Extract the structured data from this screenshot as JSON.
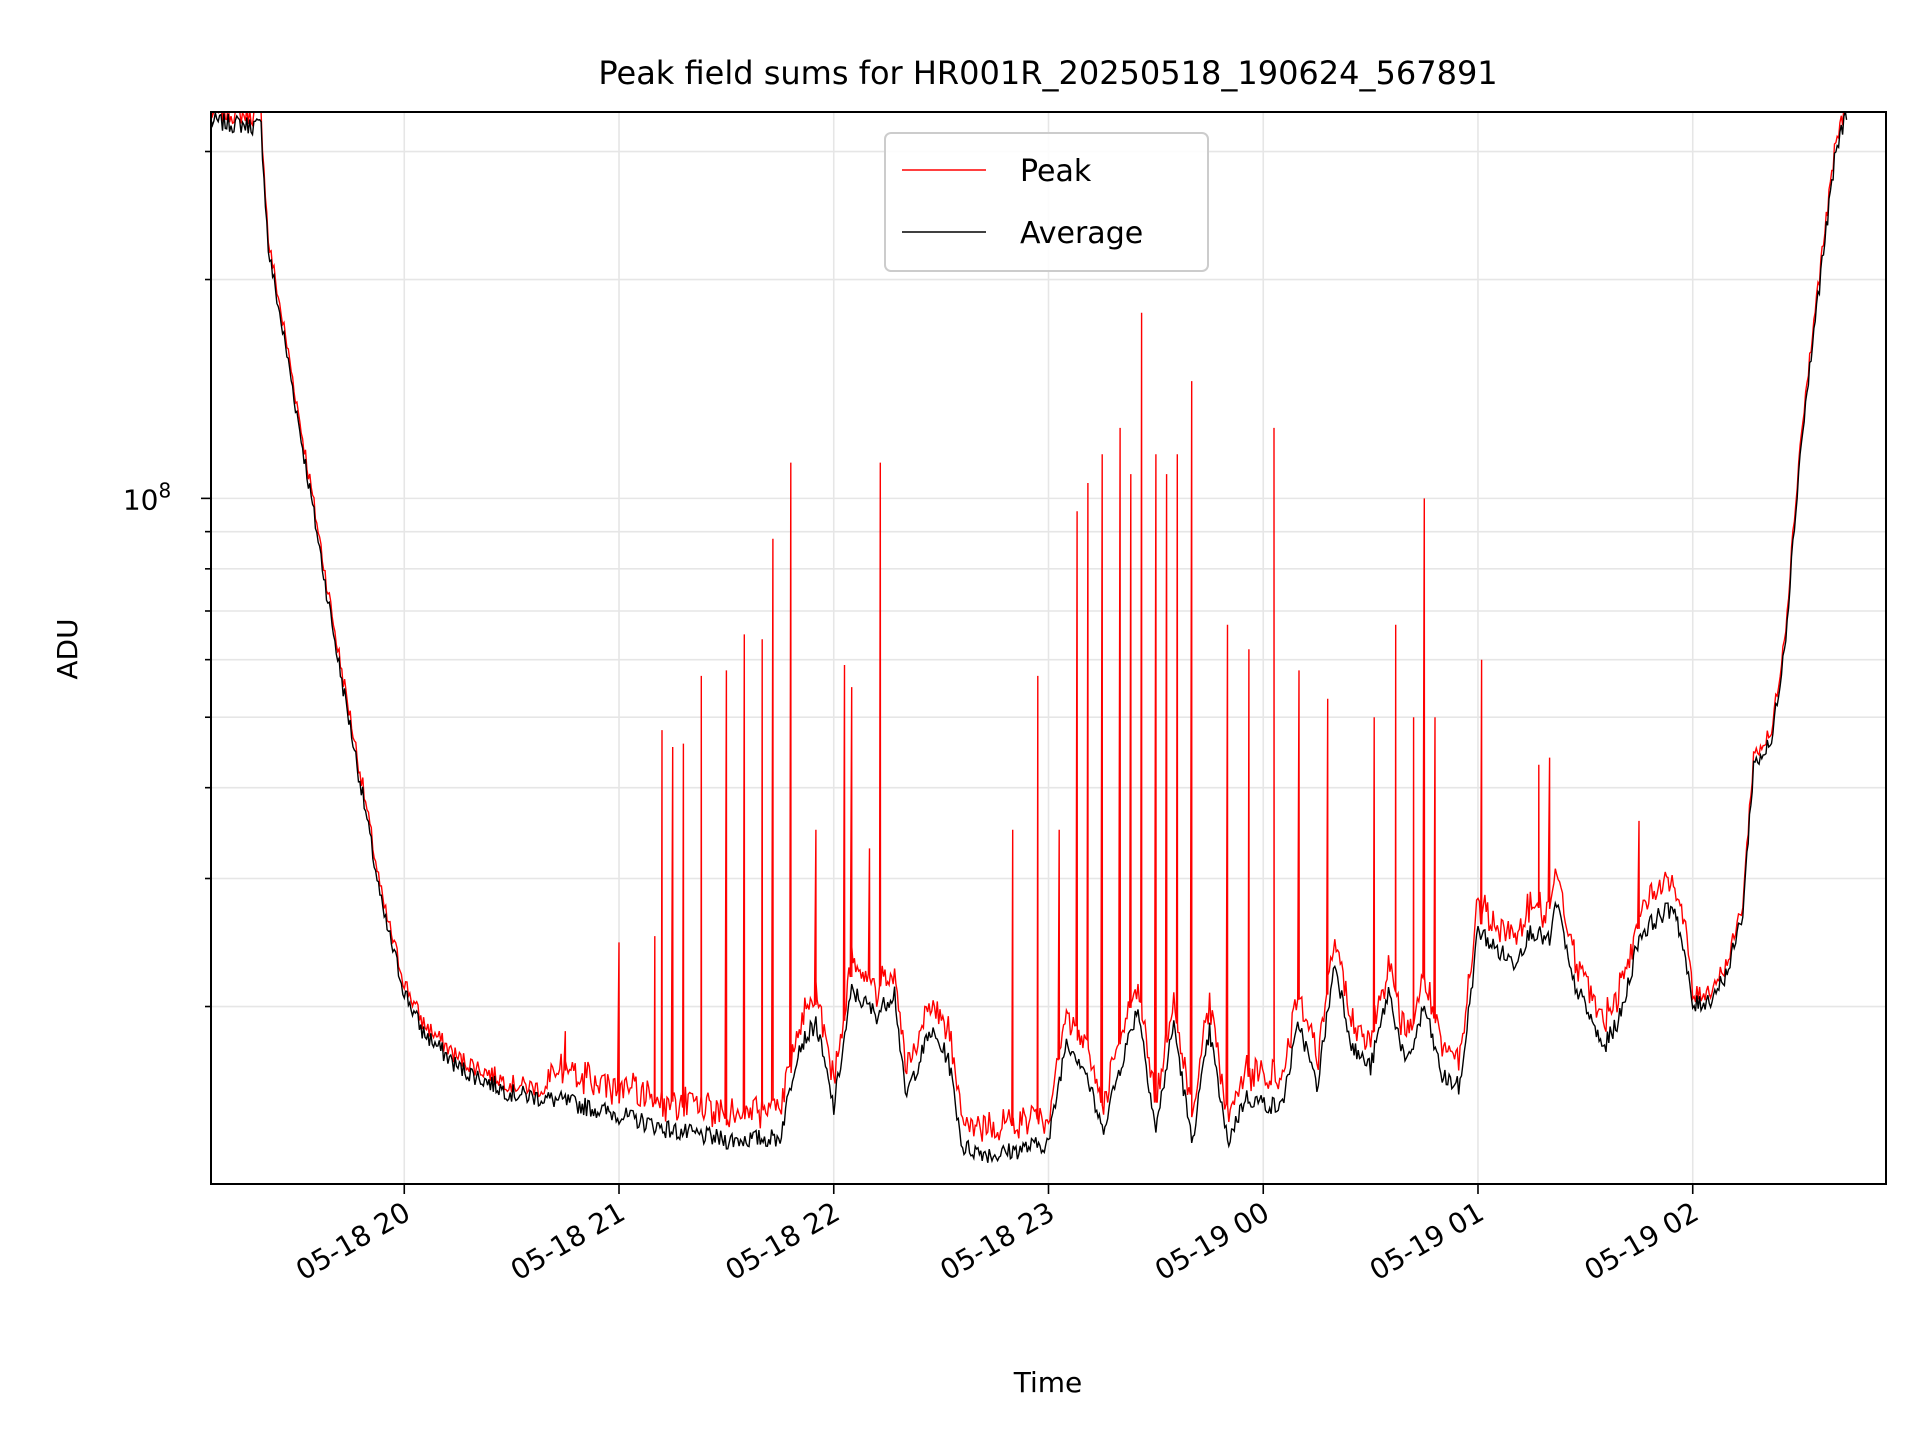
{
  "chart_data": {
    "type": "line",
    "title": "Peak field sums for HR001R_20250518_190624_567891",
    "xlabel": "Time",
    "ylabel": "ADU",
    "x_tick_labels": [
      "05-18 20",
      "05-18 21",
      "05-18 22",
      "05-18 23",
      "05-19 00",
      "05-19 01",
      "05-19 02"
    ],
    "y_tick_labels": [
      {
        "base": "10",
        "exp": "8"
      }
    ],
    "y_scale": "log",
    "ylim": [
      11400000.0,
      340000000.0
    ],
    "grid": true,
    "legend_position": "top-center",
    "legend": [
      {
        "name": "Peak",
        "color": "#ff0000"
      },
      {
        "name": "Average",
        "color": "#000000"
      }
    ],
    "x_start_label": "2025-05-18 19:06",
    "x_end_label": "2025-05-19 02:54",
    "series": [
      {
        "name": "Average",
        "color": "#000000",
        "points": [
          [
            "2025-05-18 19:06",
            330000000.0
          ],
          [
            "2025-05-18 19:20",
            325000000.0
          ],
          [
            "2025-05-18 19:22",
            220000000.0
          ],
          [
            "2025-05-18 19:28",
            150000000.0
          ],
          [
            "2025-05-18 19:34",
            100000000.0
          ],
          [
            "2025-05-18 19:41",
            62000000.0
          ],
          [
            "2025-05-18 19:48",
            40000000.0
          ],
          [
            "2025-05-18 19:54",
            27000000.0
          ],
          [
            "2025-05-18 20:00",
            21000000.0
          ],
          [
            "2025-05-18 20:05",
            18500000.0
          ],
          [
            "2025-05-18 20:15",
            16500000.0
          ],
          [
            "2025-05-18 20:30",
            15200000.0
          ],
          [
            "2025-05-18 20:45",
            14800000.0
          ],
          [
            "2025-05-18 21:00",
            14200000.0
          ],
          [
            "2025-05-18 21:15",
            13500000.0
          ],
          [
            "2025-05-18 21:30",
            13100000.0
          ],
          [
            "2025-05-18 21:45",
            13200000.0
          ],
          [
            "2025-05-18 21:50",
            17500000.0
          ],
          [
            "2025-05-18 21:55",
            19000000.0
          ],
          [
            "2025-05-18 22:00",
            14500000.0
          ],
          [
            "2025-05-18 22:05",
            21000000.0
          ],
          [
            "2025-05-18 22:12",
            19500000.0
          ],
          [
            "2025-05-18 22:17",
            21000000.0
          ],
          [
            "2025-05-18 22:20",
            15000000.0
          ],
          [
            "2025-05-18 22:27",
            18500000.0
          ],
          [
            "2025-05-18 22:32",
            17000000.0
          ],
          [
            "2025-05-18 22:36",
            12800000.0
          ],
          [
            "2025-05-18 22:45",
            12500000.0
          ],
          [
            "2025-05-18 23:00",
            13000000.0
          ],
          [
            "2025-05-18 23:05",
            18000000.0
          ],
          [
            "2025-05-18 23:10",
            16500000.0
          ],
          [
            "2025-05-18 23:15",
            13500000.0
          ],
          [
            "2025-05-18 23:20",
            16500000.0
          ],
          [
            "2025-05-18 23:25",
            20000000.0
          ],
          [
            "2025-05-18 23:30",
            13500000.0
          ],
          [
            "2025-05-18 23:35",
            19000000.0
          ],
          [
            "2025-05-18 23:40",
            13000000.0
          ],
          [
            "2025-05-18 23:45",
            18500000.0
          ],
          [
            "2025-05-18 23:50",
            13000000.0
          ],
          [
            "2025-05-18 23:55",
            15000000.0
          ],
          [
            "2025-05-19 00:05",
            14500000.0
          ],
          [
            "2025-05-19 00:10",
            19000000.0
          ],
          [
            "2025-05-19 00:15",
            15500000.0
          ],
          [
            "2025-05-19 00:20",
            23000000.0
          ],
          [
            "2025-05-19 00:25",
            17500000.0
          ],
          [
            "2025-05-19 00:30",
            16500000.0
          ],
          [
            "2025-05-19 00:35",
            21000000.0
          ],
          [
            "2025-05-19 00:40",
            16500000.0
          ],
          [
            "2025-05-19 00:45",
            20000000.0
          ],
          [
            "2025-05-19 00:50",
            16000000.0
          ],
          [
            "2025-05-19 00:55",
            15500000.0
          ],
          [
            "2025-05-19 01:00",
            25500000.0
          ],
          [
            "2025-05-19 01:05",
            24000000.0
          ],
          [
            "2025-05-19 01:10",
            23000000.0
          ],
          [
            "2025-05-19 01:15",
            25500000.0
          ],
          [
            "2025-05-19 01:20",
            24500000.0
          ],
          [
            "2025-05-19 01:22",
            28000000.0
          ],
          [
            "2025-05-19 01:26",
            22000000.0
          ],
          [
            "2025-05-19 01:30",
            20000000.0
          ],
          [
            "2025-05-19 01:35",
            17500000.0
          ],
          [
            "2025-05-19 01:40",
            19500000.0
          ],
          [
            "2025-05-19 01:45",
            25000000.0
          ],
          [
            "2025-05-19 01:50",
            26500000.0
          ],
          [
            "2025-05-19 01:55",
            27500000.0
          ],
          [
            "2025-05-19 01:58",
            23000000.0
          ],
          [
            "2025-05-19 02:00",
            20000000.0
          ],
          [
            "2025-05-19 02:05",
            20500000.0
          ],
          [
            "2025-05-19 02:10",
            22500000.0
          ],
          [
            "2025-05-19 02:14",
            27000000.0
          ],
          [
            "2025-05-19 02:17",
            43000000.0
          ],
          [
            "2025-05-19 02:22",
            46000000.0
          ],
          [
            "2025-05-19 02:26",
            65000000.0
          ],
          [
            "2025-05-19 02:30",
            115000000.0
          ],
          [
            "2025-05-19 02:35",
            190000000.0
          ],
          [
            "2025-05-19 02:40",
            300000000.0
          ],
          [
            "2025-05-19 02:43",
            340000000.0
          ]
        ]
      },
      {
        "name": "Peak",
        "color": "#ff0000",
        "spikes": [
          [
            "2025-05-18 20:45",
            18500000.0
          ],
          [
            "2025-05-18 21:00",
            24500000.0
          ],
          [
            "2025-05-18 21:10",
            25000000.0
          ],
          [
            "2025-05-18 21:12",
            48000000.0
          ],
          [
            "2025-05-18 21:15",
            45500000.0
          ],
          [
            "2025-05-18 21:18",
            46000000.0
          ],
          [
            "2025-05-18 21:23",
            57000000.0
          ],
          [
            "2025-05-18 21:30",
            58000000.0
          ],
          [
            "2025-05-18 21:35",
            65000000.0
          ],
          [
            "2025-05-18 21:40",
            64000000.0
          ],
          [
            "2025-05-18 21:43",
            88000000.0
          ],
          [
            "2025-05-18 21:48",
            112000000.0
          ],
          [
            "2025-05-18 21:55",
            35000000.0
          ],
          [
            "2025-05-18 22:03",
            59000000.0
          ],
          [
            "2025-05-18 22:05",
            55000000.0
          ],
          [
            "2025-05-18 22:10",
            33000000.0
          ],
          [
            "2025-05-18 22:13",
            112000000.0
          ],
          [
            "2025-05-18 22:50",
            35000000.0
          ],
          [
            "2025-05-18 22:57",
            57000000.0
          ],
          [
            "2025-05-18 23:03",
            35000000.0
          ],
          [
            "2025-05-18 23:08",
            96000000.0
          ],
          [
            "2025-05-18 23:11",
            105000000.0
          ],
          [
            "2025-05-18 23:15",
            115000000.0
          ],
          [
            "2025-05-18 23:20",
            125000000.0
          ],
          [
            "2025-05-18 23:23",
            108000000.0
          ],
          [
            "2025-05-18 23:26",
            180000000.0
          ],
          [
            "2025-05-18 23:30",
            115000000.0
          ],
          [
            "2025-05-18 23:33",
            108000000.0
          ],
          [
            "2025-05-18 23:36",
            115000000.0
          ],
          [
            "2025-05-18 23:40",
            145000000.0
          ],
          [
            "2025-05-18 23:50",
            67000000.0
          ],
          [
            "2025-05-18 23:56",
            62000000.0
          ],
          [
            "2025-05-19 00:03",
            125000000.0
          ],
          [
            "2025-05-19 00:10",
            58000000.0
          ],
          [
            "2025-05-19 00:18",
            53000000.0
          ],
          [
            "2025-05-19 00:31",
            50000000.0
          ],
          [
            "2025-05-19 00:37",
            67000000.0
          ],
          [
            "2025-05-19 00:42",
            50000000.0
          ],
          [
            "2025-05-19 00:45",
            100000000.0
          ],
          [
            "2025-05-19 00:48",
            50000000.0
          ],
          [
            "2025-05-19 01:01",
            60000000.0
          ],
          [
            "2025-05-19 01:17",
            43000000.0
          ],
          [
            "2025-05-19 01:20",
            44000000.0
          ],
          [
            "2025-05-19 01:45",
            36000000.0
          ]
        ]
      }
    ]
  }
}
